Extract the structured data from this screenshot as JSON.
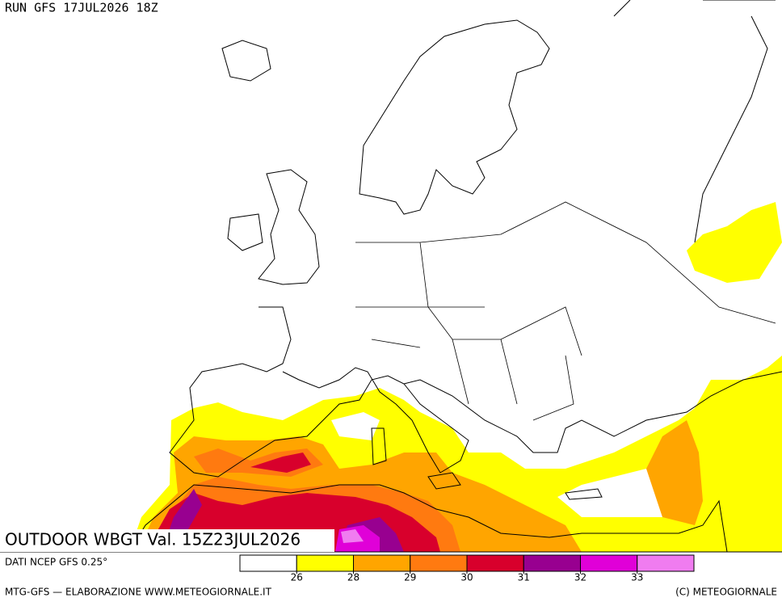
{
  "header": {
    "run": "RUN GFS 17JUL2026 18Z"
  },
  "map": {
    "title": "OUTDOOR WBGT Val. 15Z23JUL2026"
  },
  "legend": {
    "colors": [
      "#ffffff",
      "#ffff00",
      "#ffa500",
      "#ff7a10",
      "#d8002c",
      "#980090",
      "#e000d8",
      "#f07cf0"
    ],
    "ticks": [
      26,
      28,
      29,
      30,
      31,
      32,
      33
    ]
  },
  "footer": {
    "source": "DATI NCEP GFS 0.25°",
    "credits_left": "MTG-GFS — ELABORAZIONE WWW.METEOGIORNALE.IT",
    "credits_right": "(C) METEOGIORNALE"
  }
}
